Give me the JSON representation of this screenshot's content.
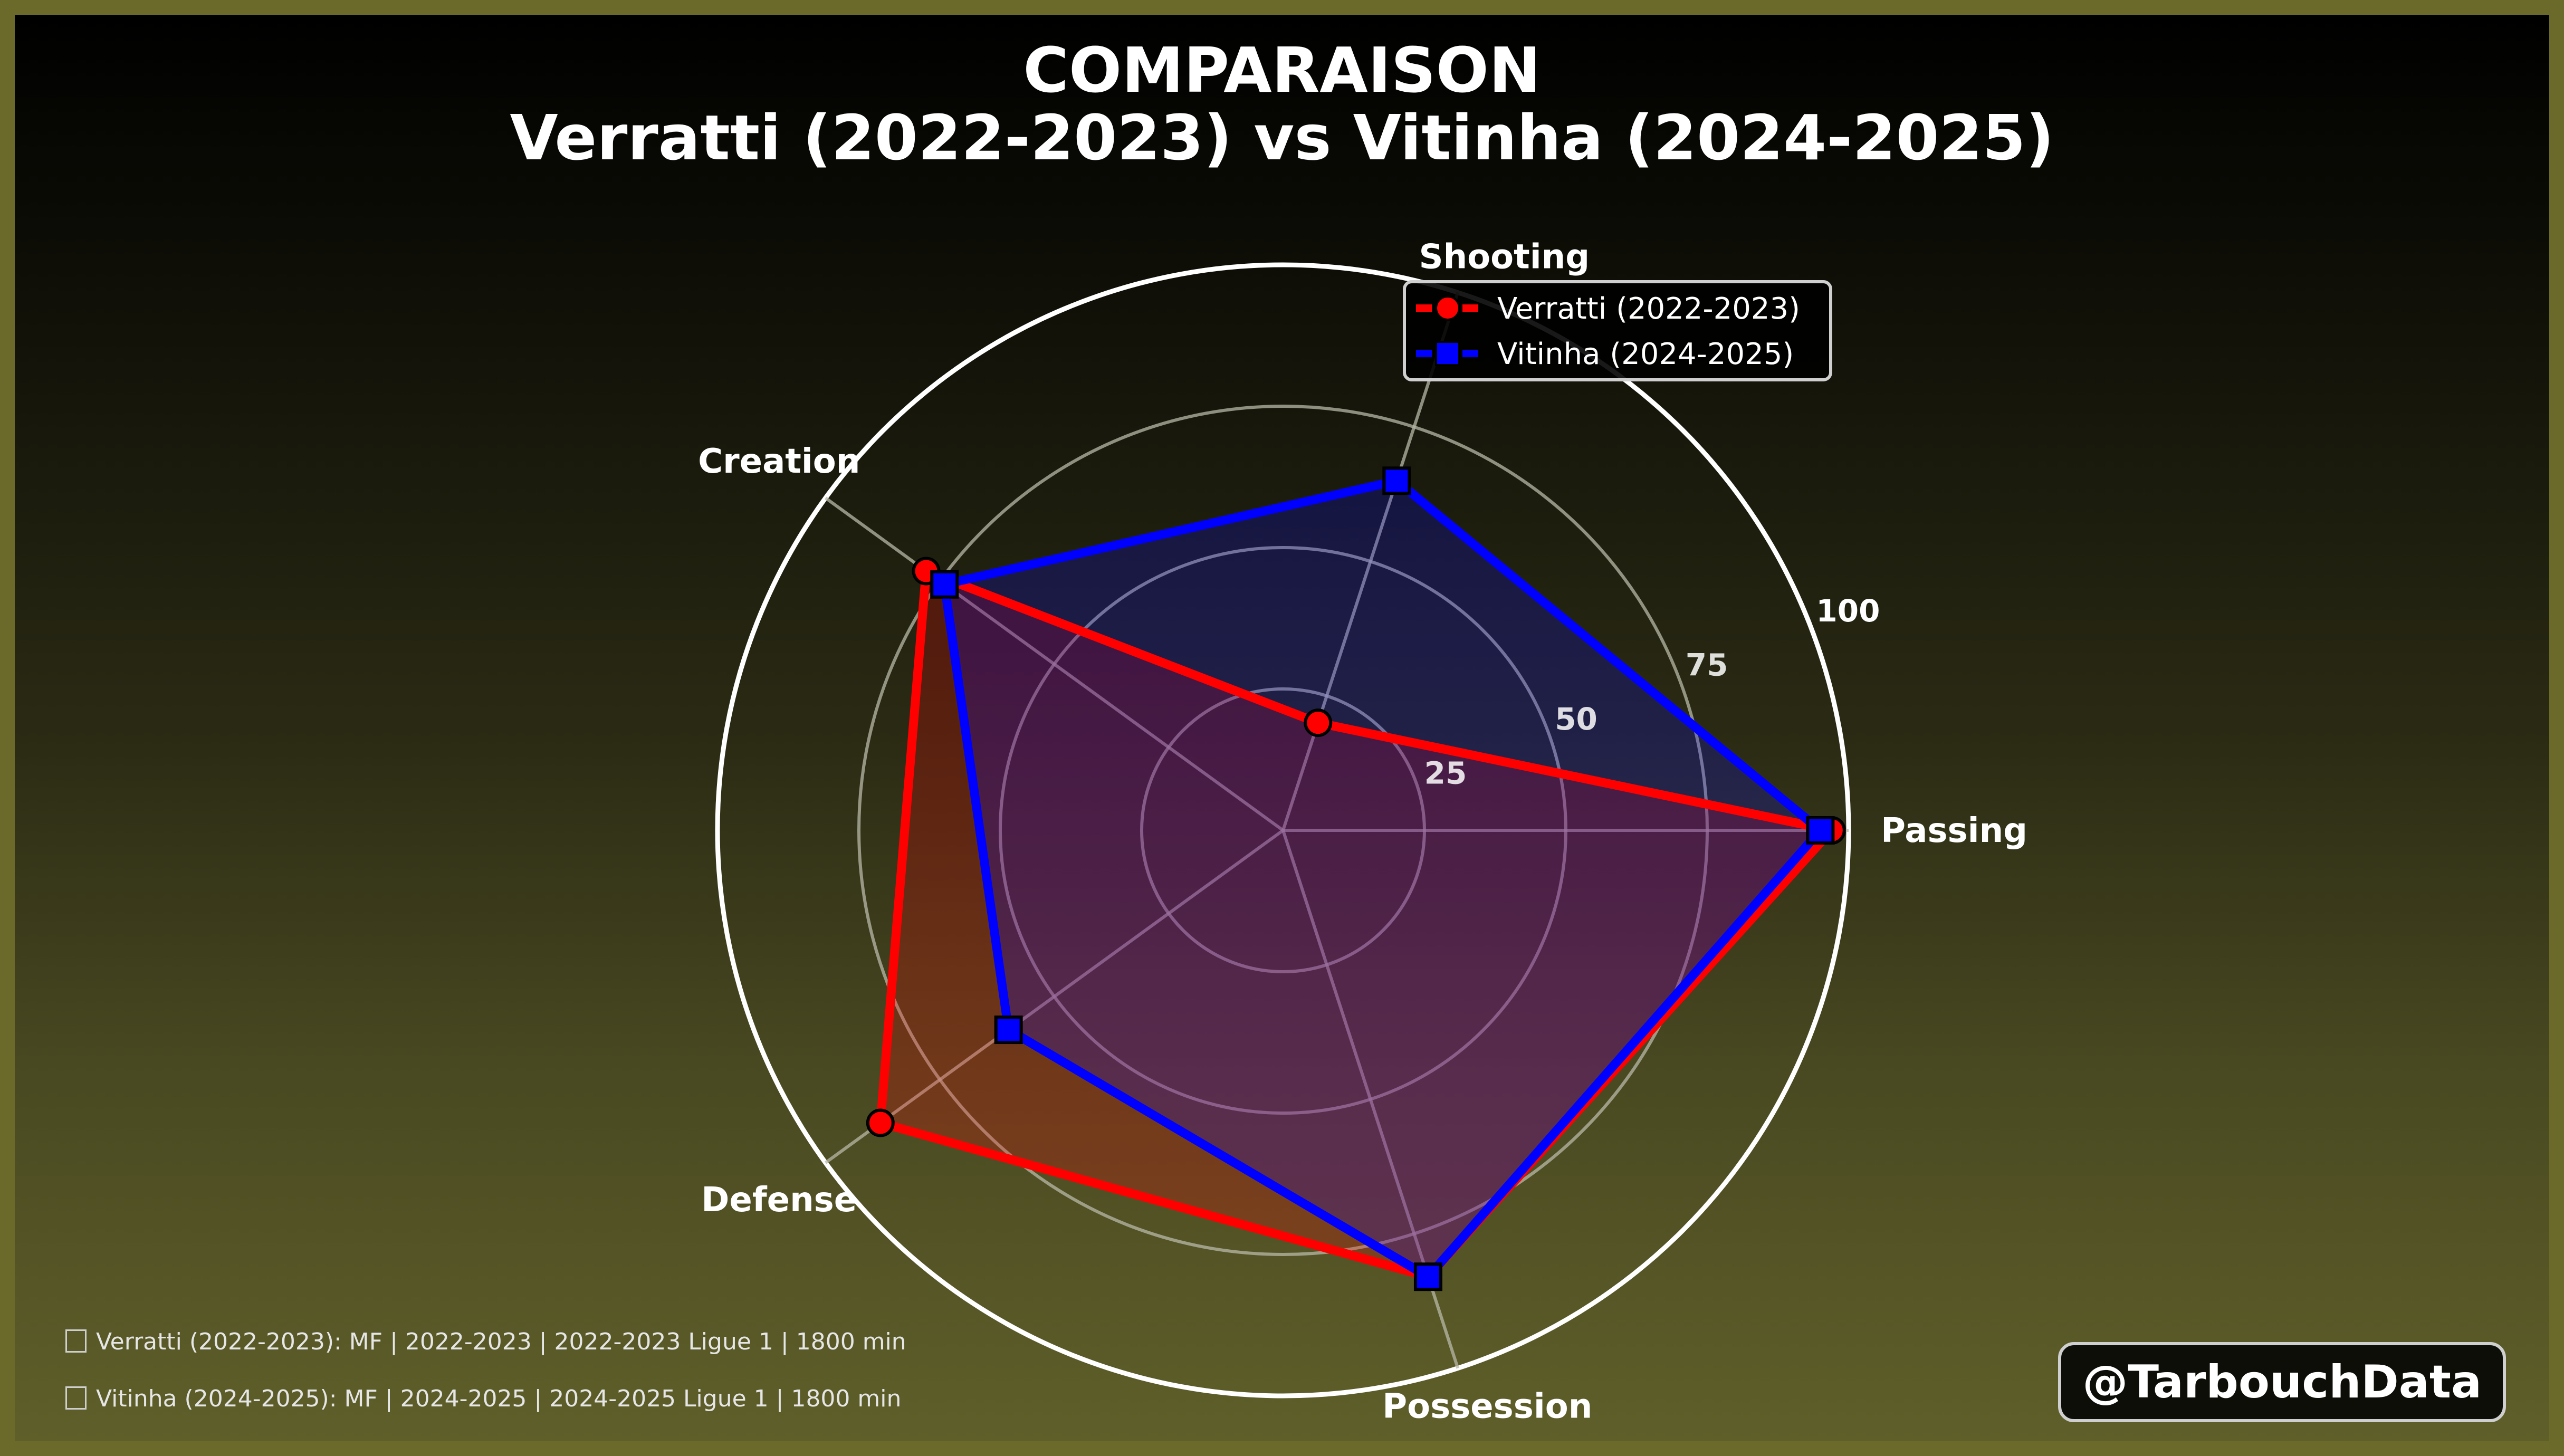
{
  "title_line1": "COMPARAISON",
  "title_line2": "Verratti (2022-2023) vs Vitinha (2024-2025)",
  "footnotes": [
    "Verratti (2022-2023): MF | 2022-2023 | 2022-2023 Ligue 1 | 1800 min",
    "Vitinha (2024-2025): MF | 2024-2025 | 2024-2025 Ligue 1 | 1800 min"
  ],
  "watermark": "@TarbouchData",
  "chart_data": {
    "type": "radar",
    "axes": [
      "Passing",
      "Shooting",
      "Creation",
      "Defense",
      "Possession"
    ],
    "radial_ticks": [
      25,
      50,
      75,
      100
    ],
    "rlim": [
      0,
      100
    ],
    "grid": true,
    "legend": "top-right",
    "series": [
      {
        "name": "Verratti (2022-2023)",
        "values": [
          97,
          20,
          78,
          88,
          83
        ],
        "color": "#ff0000",
        "marker": "circle"
      },
      {
        "name": "Vitinha (2024-2025)",
        "values": [
          95,
          65,
          74,
          60,
          83
        ],
        "color": "#0000ff",
        "marker": "square"
      }
    ]
  }
}
